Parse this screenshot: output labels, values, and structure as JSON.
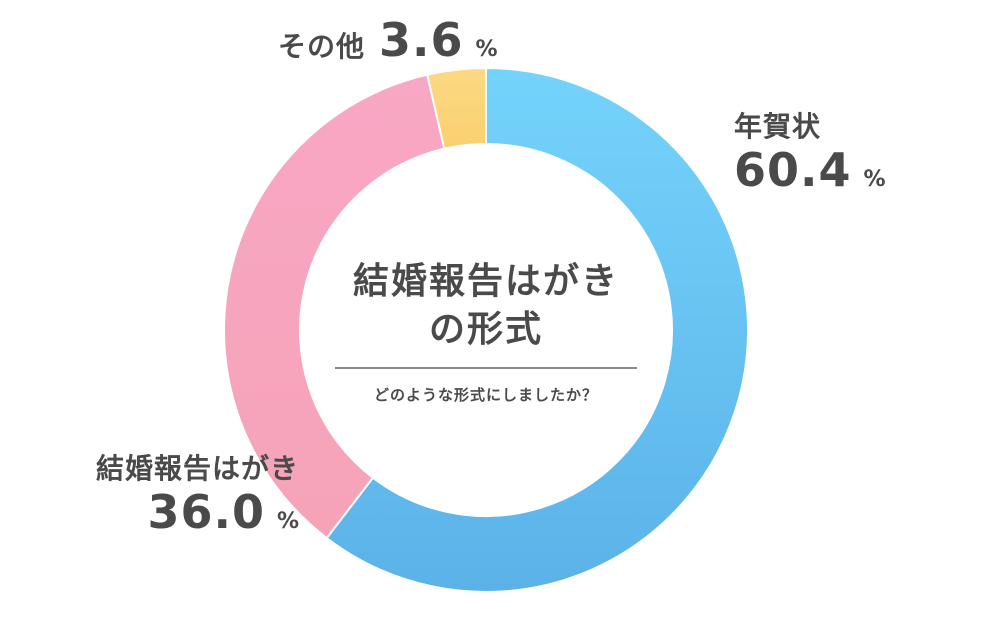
{
  "chart_data": {
    "type": "pie",
    "style": "donut",
    "title": "結婚報告はがきの形式",
    "title_lines": [
      "結婚報告はがき",
      "の形式"
    ],
    "subtitle": "どのような形式にしましたか？",
    "unit": "%",
    "slices": [
      {
        "label": "年賀状",
        "value": 60.4,
        "value_text": "60.4",
        "color": "#6ec6f5"
      },
      {
        "label": "結婚報告はがき",
        "value": 36.0,
        "value_text": "36.0",
        "color": "#f7a6c0"
      },
      {
        "label": "その他",
        "value": 3.6,
        "value_text": "3.6",
        "color": "#fbd67c"
      }
    ]
  }
}
